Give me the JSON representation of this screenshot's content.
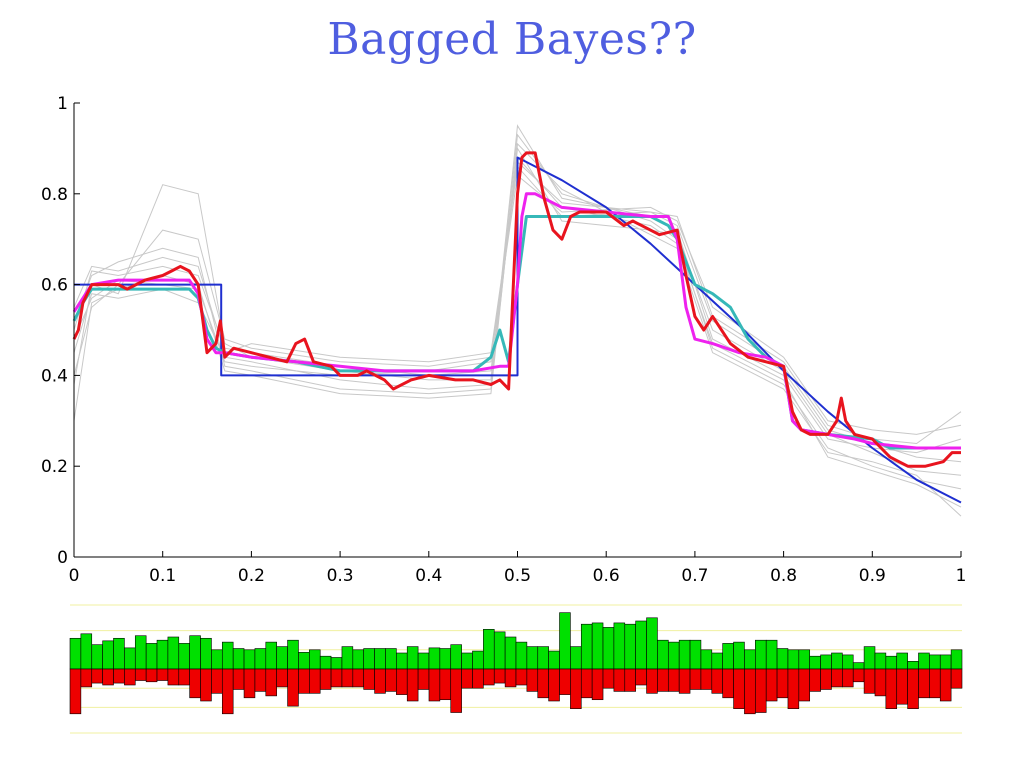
{
  "slide": {
    "title": "Bagged Bayes??"
  },
  "chart_data": [
    {
      "type": "line",
      "title": "",
      "xlabel": "",
      "ylabel": "",
      "xlim": [
        0,
        1
      ],
      "ylim": [
        0,
        1
      ],
      "x_ticks": [
        "0",
        "0.1",
        "0.2",
        "0.3",
        "0.4",
        "0.5",
        "0.6",
        "0.7",
        "0.8",
        "0.9",
        "1"
      ],
      "y_ticks": [
        "0",
        "0.2",
        "0.4",
        "0.6",
        "0.8",
        "1"
      ],
      "grid": false,
      "legend": "none",
      "colors": {
        "bootstrap": "#c8c8c8",
        "true_function": "#1f2fd0",
        "cyan_fit": "#36b8b8",
        "magenta_fit": "#ee22ee",
        "red_fit": "#e8141e"
      },
      "bootstrap_curves": [
        {
          "x": [
            0,
            0.02,
            0.05,
            0.1,
            0.14,
            0.17,
            0.2,
            0.3,
            0.4,
            0.47,
            0.5,
            0.55,
            0.65,
            0.68,
            0.72,
            0.8,
            0.85,
            0.9,
            0.95,
            1
          ],
          "y": [
            0.5,
            0.63,
            0.62,
            0.64,
            0.62,
            0.46,
            0.45,
            0.42,
            0.4,
            0.41,
            0.87,
            0.78,
            0.76,
            0.73,
            0.52,
            0.42,
            0.28,
            0.25,
            0.22,
            0.21
          ]
        },
        {
          "x": [
            0,
            0.02,
            0.05,
            0.1,
            0.14,
            0.17,
            0.2,
            0.3,
            0.4,
            0.47,
            0.5,
            0.55,
            0.65,
            0.68,
            0.72,
            0.8,
            0.85,
            0.9,
            0.95,
            1
          ],
          "y": [
            0.45,
            0.58,
            0.57,
            0.59,
            0.56,
            0.44,
            0.43,
            0.39,
            0.37,
            0.38,
            0.93,
            0.8,
            0.74,
            0.7,
            0.46,
            0.38,
            0.24,
            0.2,
            0.17,
            0.15
          ]
        },
        {
          "x": [
            0,
            0.02,
            0.05,
            0.1,
            0.14,
            0.17,
            0.2,
            0.3,
            0.4,
            0.47,
            0.5,
            0.55,
            0.65,
            0.68,
            0.72,
            0.8,
            0.85,
            0.9,
            0.95,
            1
          ],
          "y": [
            0.4,
            0.55,
            0.6,
            0.72,
            0.7,
            0.48,
            0.46,
            0.43,
            0.42,
            0.44,
            0.84,
            0.76,
            0.77,
            0.74,
            0.55,
            0.44,
            0.3,
            0.28,
            0.27,
            0.29
          ]
        },
        {
          "x": [
            0,
            0.02,
            0.05,
            0.1,
            0.14,
            0.17,
            0.2,
            0.3,
            0.4,
            0.47,
            0.5,
            0.55,
            0.65,
            0.68,
            0.72,
            0.8,
            0.85,
            0.9,
            0.95,
            1
          ],
          "y": [
            0.52,
            0.62,
            0.65,
            0.68,
            0.66,
            0.42,
            0.41,
            0.37,
            0.36,
            0.37,
            0.9,
            0.74,
            0.72,
            0.71,
            0.5,
            0.41,
            0.27,
            0.23,
            0.19,
            0.18
          ]
        },
        {
          "x": [
            0,
            0.02,
            0.05,
            0.1,
            0.14,
            0.17,
            0.2,
            0.3,
            0.4,
            0.47,
            0.5,
            0.55,
            0.65,
            0.68,
            0.72,
            0.8,
            0.85,
            0.9,
            0.95,
            1
          ],
          "y": [
            0.38,
            0.6,
            0.58,
            0.82,
            0.8,
            0.47,
            0.44,
            0.41,
            0.39,
            0.39,
            0.95,
            0.79,
            0.75,
            0.72,
            0.48,
            0.4,
            0.26,
            0.24,
            0.23,
            0.26
          ]
        },
        {
          "x": [
            0,
            0.02,
            0.05,
            0.1,
            0.14,
            0.17,
            0.2,
            0.3,
            0.4,
            0.47,
            0.5,
            0.55,
            0.65,
            0.68,
            0.72,
            0.8,
            0.85,
            0.9,
            0.95,
            1
          ],
          "y": [
            0.48,
            0.57,
            0.61,
            0.6,
            0.59,
            0.43,
            0.42,
            0.4,
            0.41,
            0.43,
            0.88,
            0.77,
            0.73,
            0.69,
            0.47,
            0.39,
            0.22,
            0.19,
            0.16,
            0.11
          ]
        },
        {
          "x": [
            0,
            0.02,
            0.05,
            0.1,
            0.14,
            0.17,
            0.2,
            0.3,
            0.4,
            0.47,
            0.5,
            0.55,
            0.65,
            0.68,
            0.72,
            0.8,
            0.85,
            0.9,
            0.95,
            1
          ],
          "y": [
            0.55,
            0.64,
            0.63,
            0.66,
            0.64,
            0.45,
            0.47,
            0.44,
            0.43,
            0.45,
            0.86,
            0.75,
            0.76,
            0.75,
            0.53,
            0.43,
            0.29,
            0.26,
            0.25,
            0.32
          ]
        },
        {
          "x": [
            0,
            0.02,
            0.05,
            0.1,
            0.14,
            0.17,
            0.2,
            0.3,
            0.4,
            0.47,
            0.5,
            0.55,
            0.65,
            0.68,
            0.72,
            0.8,
            0.85,
            0.9,
            0.95,
            1
          ],
          "y": [
            0.3,
            0.56,
            0.59,
            0.62,
            0.6,
            0.41,
            0.4,
            0.36,
            0.35,
            0.36,
            0.91,
            0.81,
            0.71,
            0.68,
            0.45,
            0.37,
            0.23,
            0.21,
            0.18,
            0.09
          ]
        }
      ],
      "series": [
        {
          "role": "true_function",
          "x": [
            0,
            0.02,
            0.04,
            0.06,
            0.08,
            0.1,
            0.12,
            0.14,
            0.16,
            0.166,
            0.166,
            0.2,
            0.25,
            0.3,
            0.35,
            0.4,
            0.45,
            0.5,
            0.5,
            0.51,
            0.55,
            0.6,
            0.65,
            0.7,
            0.75,
            0.8,
            0.85,
            0.9,
            0.95,
            1
          ],
          "y": [
            0.6,
            0.6,
            0.6,
            0.6,
            0.6,
            0.6,
            0.6,
            0.6,
            0.6,
            0.6,
            0.4,
            0.4,
            0.4,
            0.4,
            0.4,
            0.4,
            0.4,
            0.4,
            0.88,
            0.87,
            0.83,
            0.77,
            0.69,
            0.6,
            0.51,
            0.41,
            0.32,
            0.24,
            0.17,
            0.12
          ]
        },
        {
          "role": "cyan_fit",
          "x": [
            0,
            0.01,
            0.02,
            0.05,
            0.1,
            0.13,
            0.14,
            0.15,
            0.16,
            0.17,
            0.2,
            0.25,
            0.3,
            0.35,
            0.4,
            0.45,
            0.47,
            0.48,
            0.49,
            0.5,
            0.51,
            0.52,
            0.55,
            0.6,
            0.65,
            0.67,
            0.68,
            0.7,
            0.72,
            0.74,
            0.76,
            0.78,
            0.8,
            0.81,
            0.82,
            0.85,
            0.9,
            0.92,
            0.94,
            1
          ],
          "y": [
            0.52,
            0.56,
            0.59,
            0.59,
            0.59,
            0.59,
            0.57,
            0.5,
            0.46,
            0.45,
            0.44,
            0.43,
            0.41,
            0.41,
            0.41,
            0.41,
            0.44,
            0.5,
            0.43,
            0.6,
            0.75,
            0.75,
            0.75,
            0.75,
            0.75,
            0.73,
            0.7,
            0.6,
            0.58,
            0.55,
            0.48,
            0.44,
            0.42,
            0.3,
            0.28,
            0.27,
            0.26,
            0.24,
            0.24,
            0.24
          ]
        },
        {
          "role": "magenta_fit",
          "x": [
            0,
            0.01,
            0.02,
            0.05,
            0.1,
            0.13,
            0.14,
            0.15,
            0.16,
            0.17,
            0.2,
            0.25,
            0.3,
            0.35,
            0.4,
            0.45,
            0.48,
            0.49,
            0.5,
            0.505,
            0.51,
            0.52,
            0.55,
            0.6,
            0.65,
            0.67,
            0.68,
            0.69,
            0.7,
            0.72,
            0.75,
            0.78,
            0.8,
            0.81,
            0.82,
            0.85,
            0.88,
            0.9,
            0.95,
            1
          ],
          "y": [
            0.54,
            0.57,
            0.6,
            0.61,
            0.61,
            0.61,
            0.58,
            0.48,
            0.45,
            0.45,
            0.44,
            0.43,
            0.42,
            0.41,
            0.41,
            0.41,
            0.42,
            0.42,
            0.6,
            0.75,
            0.8,
            0.8,
            0.77,
            0.76,
            0.75,
            0.75,
            0.7,
            0.55,
            0.48,
            0.47,
            0.45,
            0.44,
            0.42,
            0.3,
            0.28,
            0.27,
            0.26,
            0.25,
            0.24,
            0.24
          ]
        },
        {
          "role": "red_fit",
          "x": [
            0,
            0.005,
            0.01,
            0.02,
            0.03,
            0.05,
            0.06,
            0.08,
            0.1,
            0.11,
            0.12,
            0.13,
            0.14,
            0.15,
            0.16,
            0.165,
            0.17,
            0.18,
            0.2,
            0.22,
            0.24,
            0.25,
            0.26,
            0.27,
            0.29,
            0.3,
            0.32,
            0.33,
            0.35,
            0.36,
            0.38,
            0.4,
            0.43,
            0.45,
            0.47,
            0.48,
            0.49,
            0.5,
            0.505,
            0.51,
            0.52,
            0.53,
            0.54,
            0.55,
            0.56,
            0.57,
            0.6,
            0.62,
            0.63,
            0.64,
            0.66,
            0.68,
            0.69,
            0.7,
            0.71,
            0.72,
            0.74,
            0.76,
            0.78,
            0.8,
            0.81,
            0.82,
            0.83,
            0.85,
            0.86,
            0.865,
            0.87,
            0.88,
            0.9,
            0.92,
            0.94,
            0.96,
            0.98,
            0.99,
            1
          ],
          "y": [
            0.48,
            0.5,
            0.56,
            0.6,
            0.6,
            0.6,
            0.59,
            0.61,
            0.62,
            0.63,
            0.64,
            0.63,
            0.6,
            0.45,
            0.47,
            0.52,
            0.44,
            0.46,
            0.45,
            0.44,
            0.43,
            0.47,
            0.48,
            0.43,
            0.42,
            0.4,
            0.4,
            0.41,
            0.39,
            0.37,
            0.39,
            0.4,
            0.39,
            0.39,
            0.38,
            0.39,
            0.37,
            0.8,
            0.88,
            0.89,
            0.89,
            0.79,
            0.72,
            0.7,
            0.75,
            0.76,
            0.76,
            0.73,
            0.74,
            0.73,
            0.71,
            0.72,
            0.62,
            0.53,
            0.5,
            0.53,
            0.47,
            0.44,
            0.43,
            0.42,
            0.32,
            0.28,
            0.27,
            0.27,
            0.3,
            0.35,
            0.3,
            0.27,
            0.26,
            0.22,
            0.2,
            0.2,
            0.21,
            0.23,
            0.23
          ]
        }
      ]
    },
    {
      "type": "bar",
      "title": "",
      "xlabel": "",
      "ylabel": "",
      "ylim": [
        -1,
        1
      ],
      "grid": true,
      "legend": "none",
      "colors": {
        "positive": "#00e000",
        "negative": "#ee0000",
        "grid": "#f0f0a0"
      },
      "positive": [
        0.48,
        0.55,
        0.38,
        0.44,
        0.48,
        0.33,
        0.52,
        0.4,
        0.45,
        0.5,
        0.4,
        0.52,
        0.48,
        0.3,
        0.42,
        0.32,
        0.3,
        0.32,
        0.42,
        0.35,
        0.45,
        0.26,
        0.3,
        0.2,
        0.18,
        0.35,
        0.3,
        0.32,
        0.32,
        0.32,
        0.25,
        0.35,
        0.25,
        0.33,
        0.32,
        0.38,
        0.25,
        0.28,
        0.62,
        0.58,
        0.5,
        0.42,
        0.35,
        0.35,
        0.28,
        0.88,
        0.35,
        0.7,
        0.72,
        0.65,
        0.72,
        0.7,
        0.75,
        0.8,
        0.45,
        0.42,
        0.45,
        0.45,
        0.3,
        0.25,
        0.4,
        0.42,
        0.3,
        0.45,
        0.45,
        0.32,
        0.3,
        0.3,
        0.2,
        0.22,
        0.25,
        0.22,
        0.1,
        0.35,
        0.25,
        0.2,
        0.25,
        0.12,
        0.25,
        0.22,
        0.22,
        0.3
      ],
      "negative": [
        0.7,
        0.28,
        0.22,
        0.25,
        0.22,
        0.25,
        0.18,
        0.2,
        0.18,
        0.25,
        0.25,
        0.45,
        0.5,
        0.38,
        0.7,
        0.32,
        0.45,
        0.35,
        0.42,
        0.28,
        0.58,
        0.38,
        0.38,
        0.32,
        0.28,
        0.28,
        0.28,
        0.32,
        0.38,
        0.35,
        0.4,
        0.5,
        0.32,
        0.5,
        0.48,
        0.68,
        0.3,
        0.3,
        0.25,
        0.22,
        0.28,
        0.25,
        0.35,
        0.45,
        0.5,
        0.4,
        0.62,
        0.45,
        0.48,
        0.3,
        0.35,
        0.35,
        0.25,
        0.38,
        0.35,
        0.35,
        0.38,
        0.32,
        0.32,
        0.38,
        0.45,
        0.62,
        0.7,
        0.68,
        0.5,
        0.45,
        0.62,
        0.5,
        0.35,
        0.32,
        0.28,
        0.28,
        0.2,
        0.38,
        0.42,
        0.62,
        0.55,
        0.62,
        0.45,
        0.45,
        0.5,
        0.3
      ]
    }
  ]
}
